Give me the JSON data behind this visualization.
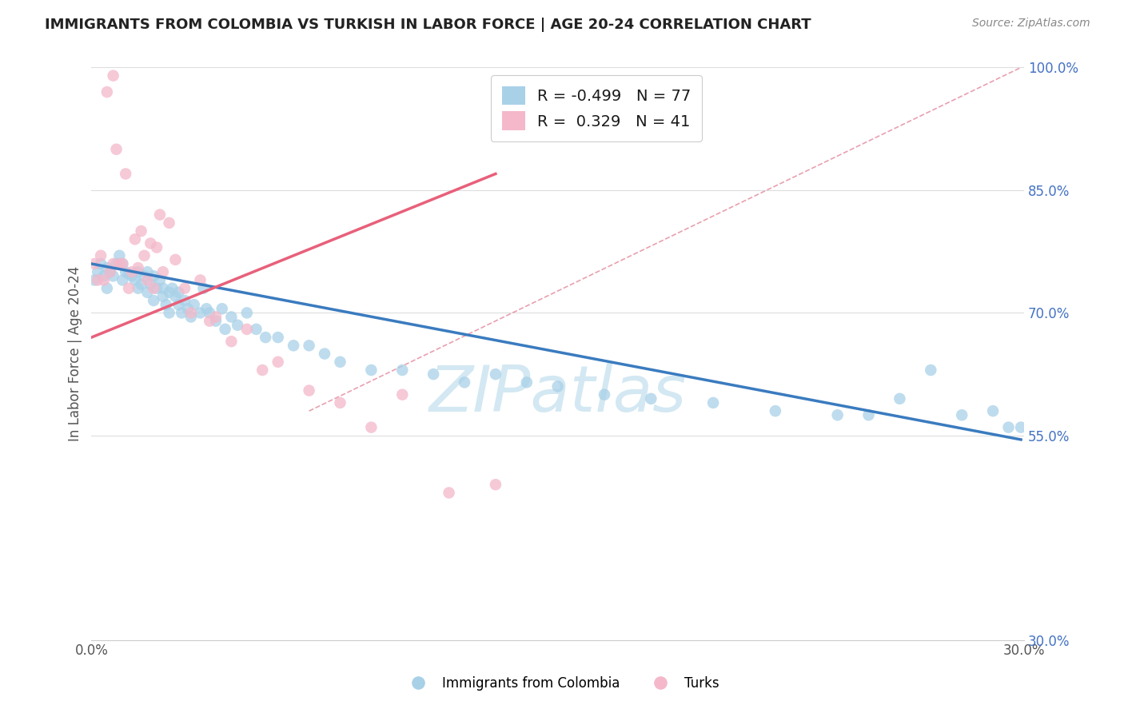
{
  "title": "IMMIGRANTS FROM COLOMBIA VS TURKISH IN LABOR FORCE | AGE 20-24 CORRELATION CHART",
  "source": "Source: ZipAtlas.com",
  "ylabel": "In Labor Force | Age 20-24",
  "xlim": [
    0.0,
    0.3
  ],
  "ylim": [
    0.3,
    1.0
  ],
  "legend_R1": "-0.499",
  "legend_N1": "77",
  "legend_R2": "0.329",
  "legend_N2": "41",
  "color_blue": "#a8d1e8",
  "color_pink": "#f4b8ca",
  "color_blue_line": "#3a7bbf",
  "color_pink_line": "#e8607a",
  "color_dashed": "#e8a0b0",
  "watermark_color": "#cce4f0",
  "grid_color": "#dddddd",
  "ytick_positions": [
    0.55,
    0.7,
    0.85,
    1.0
  ],
  "ytick_labels": [
    "55.0%",
    "70.0%",
    "85.0%",
    "100.0%"
  ],
  "ybot_label": "30.0%",
  "xtick_left_label": "0.0%",
  "xtick_right_label": "30.0%",
  "blue_line_x": [
    0.0,
    0.299
  ],
  "blue_line_y": [
    0.76,
    0.545
  ],
  "pink_line_x": [
    0.0,
    0.13
  ],
  "pink_line_y": [
    0.67,
    0.87
  ],
  "dash_line_x": [
    0.07,
    0.299
  ],
  "dash_line_y": [
    0.58,
    1.0
  ],
  "blue_scatter_x": [
    0.001,
    0.002,
    0.003,
    0.004,
    0.005,
    0.005,
    0.006,
    0.007,
    0.008,
    0.009,
    0.01,
    0.01,
    0.011,
    0.012,
    0.013,
    0.014,
    0.015,
    0.015,
    0.016,
    0.017,
    0.018,
    0.018,
    0.019,
    0.02,
    0.02,
    0.021,
    0.022,
    0.023,
    0.023,
    0.024,
    0.025,
    0.025,
    0.026,
    0.027,
    0.028,
    0.028,
    0.029,
    0.03,
    0.031,
    0.032,
    0.033,
    0.035,
    0.036,
    0.037,
    0.038,
    0.04,
    0.042,
    0.043,
    0.045,
    0.047,
    0.05,
    0.053,
    0.056,
    0.06,
    0.065,
    0.07,
    0.075,
    0.08,
    0.09,
    0.1,
    0.11,
    0.12,
    0.13,
    0.14,
    0.15,
    0.165,
    0.18,
    0.2,
    0.22,
    0.24,
    0.25,
    0.26,
    0.27,
    0.28,
    0.29,
    0.295,
    0.299
  ],
  "blue_scatter_y": [
    0.74,
    0.75,
    0.76,
    0.745,
    0.755,
    0.73,
    0.75,
    0.745,
    0.76,
    0.77,
    0.74,
    0.76,
    0.75,
    0.748,
    0.745,
    0.74,
    0.73,
    0.75,
    0.735,
    0.745,
    0.75,
    0.725,
    0.735,
    0.745,
    0.715,
    0.73,
    0.74,
    0.72,
    0.73,
    0.71,
    0.725,
    0.7,
    0.73,
    0.72,
    0.71,
    0.725,
    0.7,
    0.715,
    0.705,
    0.695,
    0.71,
    0.7,
    0.73,
    0.705,
    0.7,
    0.69,
    0.705,
    0.68,
    0.695,
    0.685,
    0.7,
    0.68,
    0.67,
    0.67,
    0.66,
    0.66,
    0.65,
    0.64,
    0.63,
    0.63,
    0.625,
    0.615,
    0.625,
    0.615,
    0.61,
    0.6,
    0.595,
    0.59,
    0.58,
    0.575,
    0.575,
    0.595,
    0.63,
    0.575,
    0.58,
    0.56,
    0.56
  ],
  "pink_scatter_x": [
    0.001,
    0.002,
    0.003,
    0.004,
    0.005,
    0.006,
    0.007,
    0.007,
    0.008,
    0.009,
    0.01,
    0.011,
    0.012,
    0.013,
    0.014,
    0.015,
    0.016,
    0.017,
    0.018,
    0.019,
    0.02,
    0.021,
    0.022,
    0.023,
    0.025,
    0.027,
    0.03,
    0.032,
    0.035,
    0.038,
    0.04,
    0.045,
    0.05,
    0.055,
    0.06,
    0.07,
    0.08,
    0.09,
    0.1,
    0.115,
    0.13
  ],
  "pink_scatter_y": [
    0.76,
    0.74,
    0.77,
    0.74,
    0.97,
    0.75,
    0.99,
    0.76,
    0.9,
    0.76,
    0.76,
    0.87,
    0.73,
    0.75,
    0.79,
    0.755,
    0.8,
    0.77,
    0.74,
    0.785,
    0.73,
    0.78,
    0.82,
    0.75,
    0.81,
    0.765,
    0.73,
    0.7,
    0.74,
    0.69,
    0.695,
    0.665,
    0.68,
    0.63,
    0.64,
    0.605,
    0.59,
    0.56,
    0.6,
    0.48,
    0.49
  ]
}
